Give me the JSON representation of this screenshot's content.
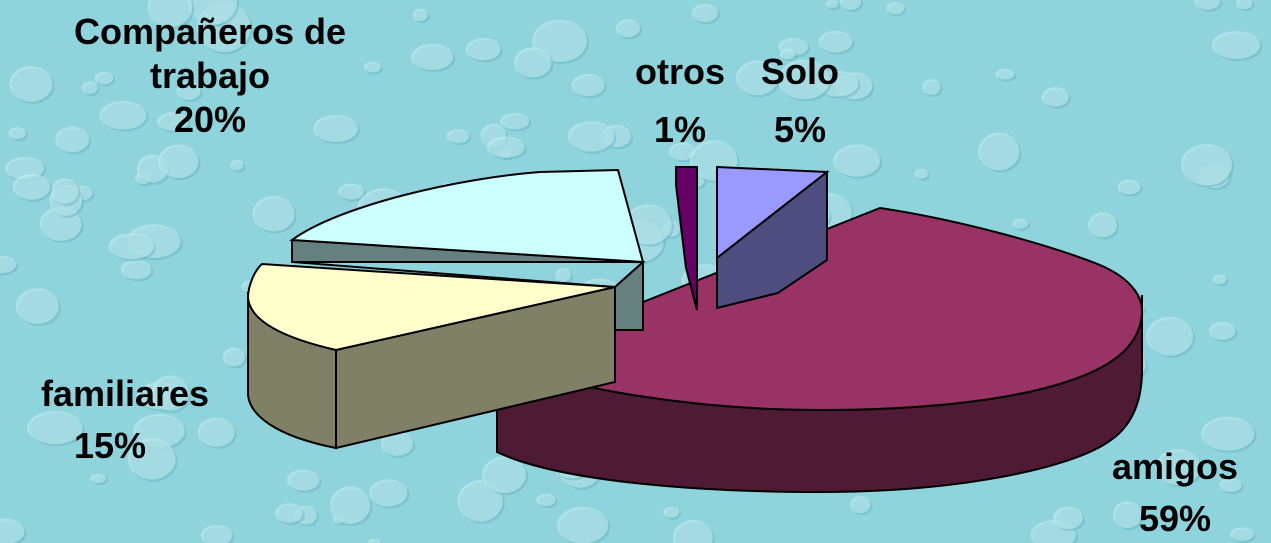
{
  "chart_data": {
    "type": "pie",
    "style": "3d-exploded",
    "title": "",
    "slices": [
      {
        "label": "amigos",
        "value": 59,
        "pct_text": "59%",
        "top_color": "#993366",
        "side_color": "#4f1a33"
      },
      {
        "label": "familiares",
        "value": 15,
        "pct_text": "15%",
        "top_color": "#ffffcc",
        "side_color": "#808066"
      },
      {
        "label": "Compañeros de trabajo",
        "value": 20,
        "pct_text": "20%",
        "top_color": "#ccffff",
        "side_color": "#668080"
      },
      {
        "label": "otros",
        "value": 1,
        "pct_text": "1%",
        "top_color": "#660066",
        "side_color": "#330033"
      },
      {
        "label": "Solo",
        "value": 5,
        "pct_text": "5%",
        "top_color": "#9999ff",
        "side_color": "#4d4d80"
      }
    ],
    "legend": "none"
  },
  "labels": {
    "companeros_line1": "Compañeros de",
    "companeros_line2": "trabajo",
    "companeros_pct": "20%",
    "otros": "otros",
    "otros_pct": "1%",
    "solo": "Solo",
    "solo_pct": "5%",
    "familiares": "familiares",
    "familiares_pct": "15%",
    "amigos": "amigos",
    "amigos_pct": "59%"
  },
  "colors": {
    "background": "#8fd3dc",
    "droplet_highlight": "#c8eef2",
    "droplet_shadow": "#5fb1bf"
  }
}
